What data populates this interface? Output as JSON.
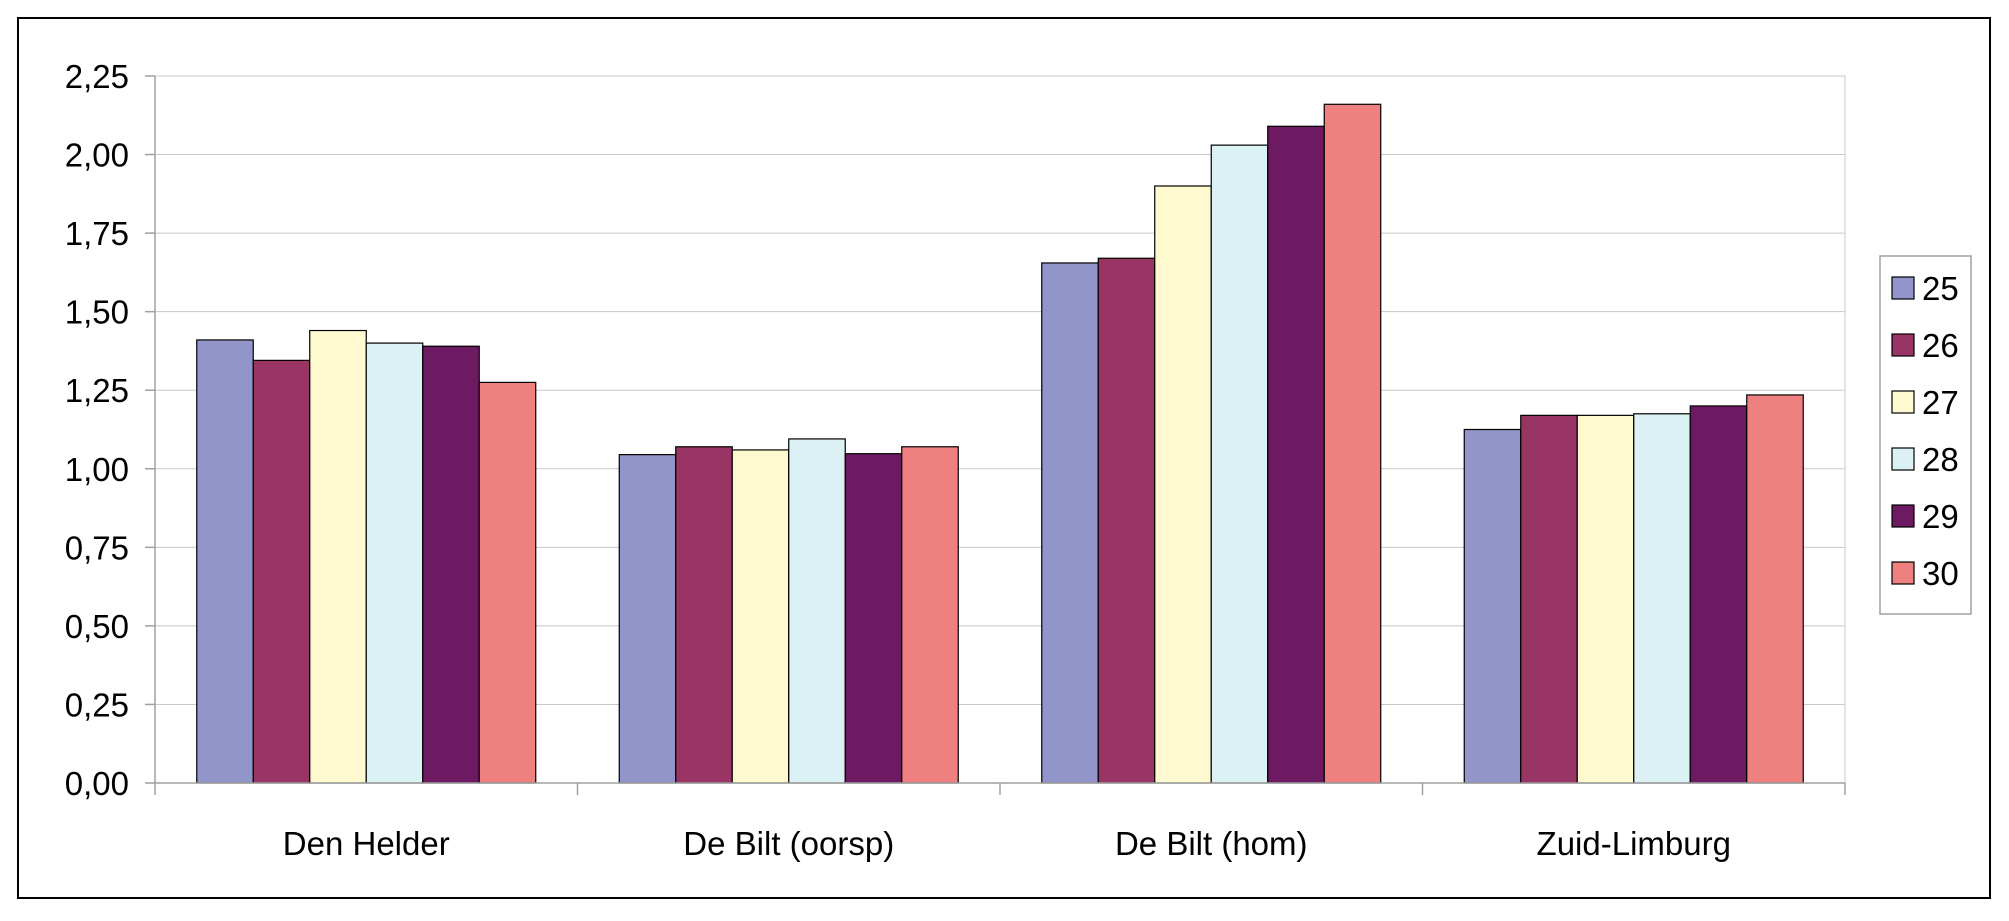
{
  "chart_data": {
    "type": "bar",
    "title": "",
    "xlabel": "",
    "ylabel": "",
    "categories": [
      "Den Helder",
      "De Bilt (oorsp)",
      "De Bilt (hom)",
      "Zuid-Limburg"
    ],
    "ylim": [
      0,
      2.25
    ],
    "yticks": [
      "0,00",
      "0,25",
      "0,50",
      "0,75",
      "1,00",
      "1,25",
      "1,50",
      "1,75",
      "2,00",
      "2,25"
    ],
    "grid": true,
    "legend": "right",
    "series": [
      {
        "name": "25",
        "color": "#9195c9",
        "values": [
          1.41,
          1.045,
          1.655,
          1.125
        ]
      },
      {
        "name": "26",
        "color": "#993565",
        "values": [
          1.345,
          1.07,
          1.67,
          1.17
        ]
      },
      {
        "name": "27",
        "color": "#fff9d0",
        "values": [
          1.44,
          1.06,
          1.9,
          1.17
        ]
      },
      {
        "name": "28",
        "color": "#dcf1f3",
        "values": [
          1.4,
          1.095,
          2.03,
          1.175
        ]
      },
      {
        "name": "29",
        "color": "#6e1a63",
        "values": [
          1.39,
          1.048,
          2.09,
          1.2
        ]
      },
      {
        "name": "30",
        "color": "#ef8080",
        "values": [
          1.275,
          1.07,
          2.16,
          1.235
        ]
      }
    ]
  }
}
